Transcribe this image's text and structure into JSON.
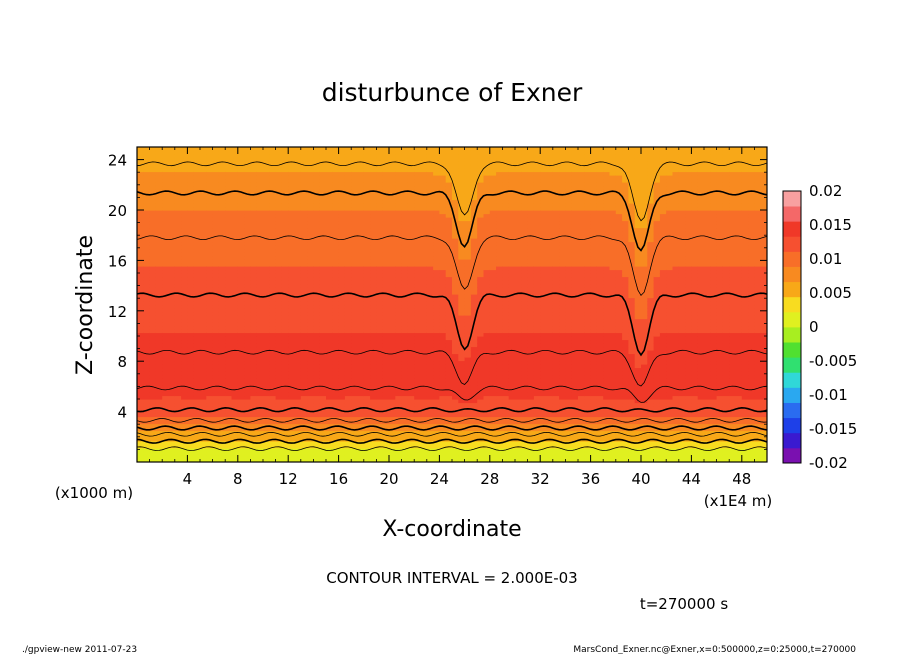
{
  "chart_data": {
    "type": "heatmap",
    "title": "disturbunce of Exner",
    "xlabel": "X-coordinate",
    "ylabel": "Z-coordinate",
    "x_unit": "(x1E4 m)",
    "y_unit": "(x1000 m)",
    "x_range": [
      0,
      50
    ],
    "y_range": [
      0,
      25
    ],
    "x_ticks": [
      "4",
      "8",
      "12",
      "16",
      "20",
      "24",
      "28",
      "32",
      "36",
      "40",
      "44",
      "48"
    ],
    "y_ticks": [
      "4",
      "8",
      "12",
      "16",
      "20",
      "24"
    ],
    "x_tick_values": [
      4,
      8,
      12,
      16,
      20,
      24,
      28,
      32,
      36,
      40,
      44,
      48
    ],
    "y_tick_values": [
      4,
      8,
      12,
      16,
      20,
      24
    ],
    "colorbar": {
      "min": -0.02,
      "max": 0.02,
      "labels": [
        "0.02",
        "0.015",
        "0.01",
        "0.005",
        "0",
        "-0.005",
        "-0.01",
        "-0.015",
        "-0.02"
      ],
      "label_values": [
        0.02,
        0.015,
        0.01,
        0.005,
        0,
        -0.005,
        -0.01,
        -0.015,
        -0.02
      ],
      "colors": [
        "#7a10b0",
        "#3a1ad0",
        "#1e40e8",
        "#2a6cf0",
        "#2aa8f0",
        "#30d8d8",
        "#30e070",
        "#50e030",
        "#a8ee20",
        "#e0f020",
        "#f8dc20",
        "#f8a818",
        "#f88a20",
        "#f86e28",
        "#f65030",
        "#f03828",
        "#f46868",
        "#f8a0a0"
      ]
    },
    "vertical_profile": [
      {
        "z": 0.0,
        "value": 0.0
      },
      {
        "z": 1.0,
        "value": 0.0018
      },
      {
        "z": 2.0,
        "value": 0.0052
      },
      {
        "z": 3.0,
        "value": 0.0092
      },
      {
        "z": 4.0,
        "value": 0.0118
      },
      {
        "z": 5.5,
        "value": 0.0138
      },
      {
        "z": 7.0,
        "value": 0.0146
      },
      {
        "z": 9.0,
        "value": 0.0139
      },
      {
        "z": 11.0,
        "value": 0.013
      },
      {
        "z": 13.0,
        "value": 0.0121
      },
      {
        "z": 15.0,
        "value": 0.0113
      },
      {
        "z": 17.0,
        "value": 0.0104
      },
      {
        "z": 19.0,
        "value": 0.0094
      },
      {
        "z": 21.0,
        "value": 0.0083
      },
      {
        "z": 23.0,
        "value": 0.0066
      },
      {
        "z": 25.0,
        "value": 0.0048
      }
    ],
    "dips": [
      {
        "x": 26.0,
        "depth_km": 4.2
      },
      {
        "x": 40.0,
        "depth_km": 4.6
      }
    ],
    "contour_interval": "CONTOUR INTERVAL = 2.000E-03"
  },
  "annotations": {
    "time": "t=270000 s",
    "footer_left": "./gpview-new  2011-07-23",
    "footer_right": "MarsCond_Exner.nc@Exner,x=0:500000,z=0:25000,t=270000"
  }
}
